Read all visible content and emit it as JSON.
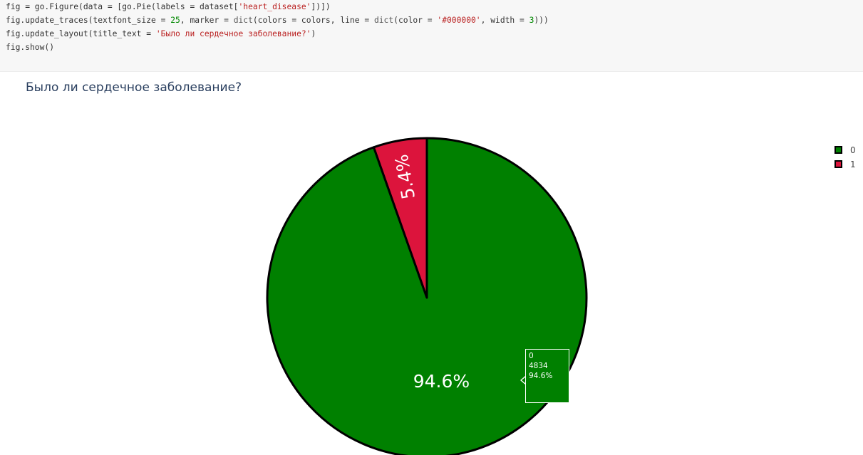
{
  "code_cell": {
    "lines": [
      [
        {
          "t": "fig = go.Figure(data = [go.Pie(labels = dataset[",
          "c": ""
        },
        {
          "t": "'heart_disease'",
          "c": "str"
        },
        {
          "t": "])])",
          "c": ""
        }
      ],
      [
        {
          "t": "fig.update_traces(textfont_size = ",
          "c": ""
        },
        {
          "t": "25",
          "c": "num"
        },
        {
          "t": ", marker = ",
          "c": ""
        },
        {
          "t": "dict",
          "c": "fn"
        },
        {
          "t": "(colors = colors, line = ",
          "c": ""
        },
        {
          "t": "dict",
          "c": "fn"
        },
        {
          "t": "(color = ",
          "c": ""
        },
        {
          "t": "'#000000'",
          "c": "str"
        },
        {
          "t": ", width = ",
          "c": ""
        },
        {
          "t": "3",
          "c": "num"
        },
        {
          "t": ")))",
          "c": ""
        }
      ],
      [
        {
          "t": "fig.update_layout(title_text = ",
          "c": ""
        },
        {
          "t": "'Было ли сердечное заболевание?'",
          "c": "str"
        },
        {
          "t": ")",
          "c": ""
        }
      ],
      [
        {
          "t": "fig.show()",
          "c": ""
        }
      ]
    ]
  },
  "chart_data": {
    "type": "pie",
    "title": "Было ли сердечное заболевание?",
    "labels": [
      "0",
      "1"
    ],
    "values": [
      4834,
      276
    ],
    "percent_text": [
      "94.6%",
      "5.4%"
    ],
    "colors": [
      "#008000",
      "#dc143c"
    ],
    "slice_border_color": "#000000",
    "legend_placement": "top-right",
    "legend": [
      {
        "label": "0",
        "color": "#008000"
      },
      {
        "label": "1",
        "color": "#dc143c"
      }
    ]
  },
  "hover": {
    "label": "0",
    "value": "4834",
    "percent": "94.6%"
  }
}
